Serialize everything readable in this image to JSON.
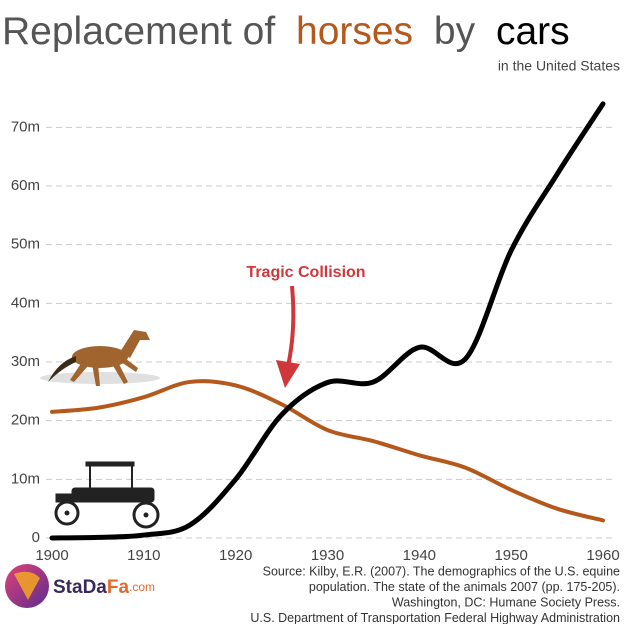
{
  "chart_data": {
    "type": "line",
    "title_start": "Replacement of",
    "title_middle": "by",
    "subtitle": "in the United States",
    "annotation": "Tragic Collision",
    "x": [
      1900,
      1905,
      1910,
      1915,
      1920,
      1925,
      1930,
      1935,
      1940,
      1945,
      1950,
      1955,
      1960
    ],
    "series": [
      {
        "name": "horses",
        "color": "#b5581c",
        "values": [
          21.5,
          22.2,
          24,
          26.6,
          26,
          22.8,
          18.4,
          16.5,
          14.1,
          12,
          8.2,
          5,
          3
        ]
      },
      {
        "name": "cars",
        "color": "#000000",
        "values": [
          0,
          0.1,
          0.5,
          2.2,
          10,
          21,
          26.5,
          26.6,
          32.5,
          30.5,
          49,
          62,
          74
        ]
      }
    ],
    "xlim": [
      1900,
      1960
    ],
    "xticks": [
      1900,
      1910,
      1920,
      1930,
      1940,
      1950,
      1960
    ],
    "ylim": [
      0,
      75
    ],
    "yticks": [
      0,
      {
        "value": 10,
        "label": "10m"
      },
      {
        "value": 20,
        "label": "20m"
      },
      {
        "value": 30,
        "label": "30m"
      },
      {
        "value": 40,
        "label": "40m"
      },
      {
        "value": 50,
        "label": "50m"
      },
      {
        "value": 60,
        "label": "60m"
      },
      {
        "value": 70,
        "label": "70m"
      }
    ],
    "grid": true,
    "source": [
      "Source: Kilby, E.R. (2007). The demographics of the U.S. equine",
      "population. The state of the animals 2007 (pp. 175-205).",
      "Washington, DC: Humane Society Press.",
      "U.S. Department of Transportation Federal Highway Administration"
    ],
    "logo": [
      "StaDa",
      "Fa",
      ".com"
    ]
  }
}
